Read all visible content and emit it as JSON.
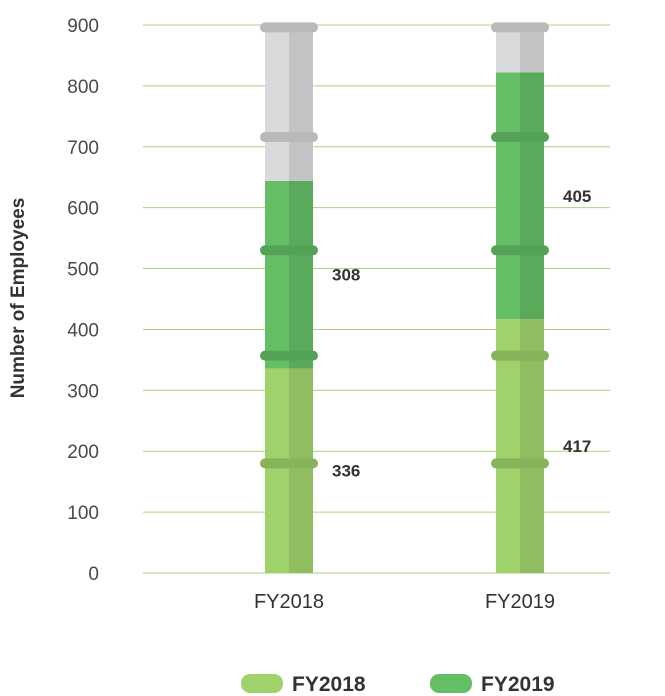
{
  "chart_data": {
    "type": "bar",
    "stacked": true,
    "categories": [
      "FY2018",
      "FY2019"
    ],
    "series": [
      {
        "name": "FY2018",
        "values": [
          336,
          417
        ],
        "color": "#9fd26a"
      },
      {
        "name": "FY2019",
        "values": [
          308,
          405
        ],
        "color": "#63be65"
      }
    ],
    "background_track": {
      "top_value": 900,
      "color": "#d9dadb"
    },
    "ylabel": "Number of Employees",
    "xlabel": "",
    "ylim": [
      0,
      900
    ],
    "yticks": [
      "0",
      "100",
      "200",
      "300",
      "400",
      "500",
      "600",
      "700",
      "800",
      "900"
    ],
    "data_labels": [
      [
        "336",
        "417"
      ],
      [
        "308",
        "405"
      ]
    ],
    "grid": true,
    "grid_color": "#a8d67a",
    "legend_position": "bottom-center"
  }
}
